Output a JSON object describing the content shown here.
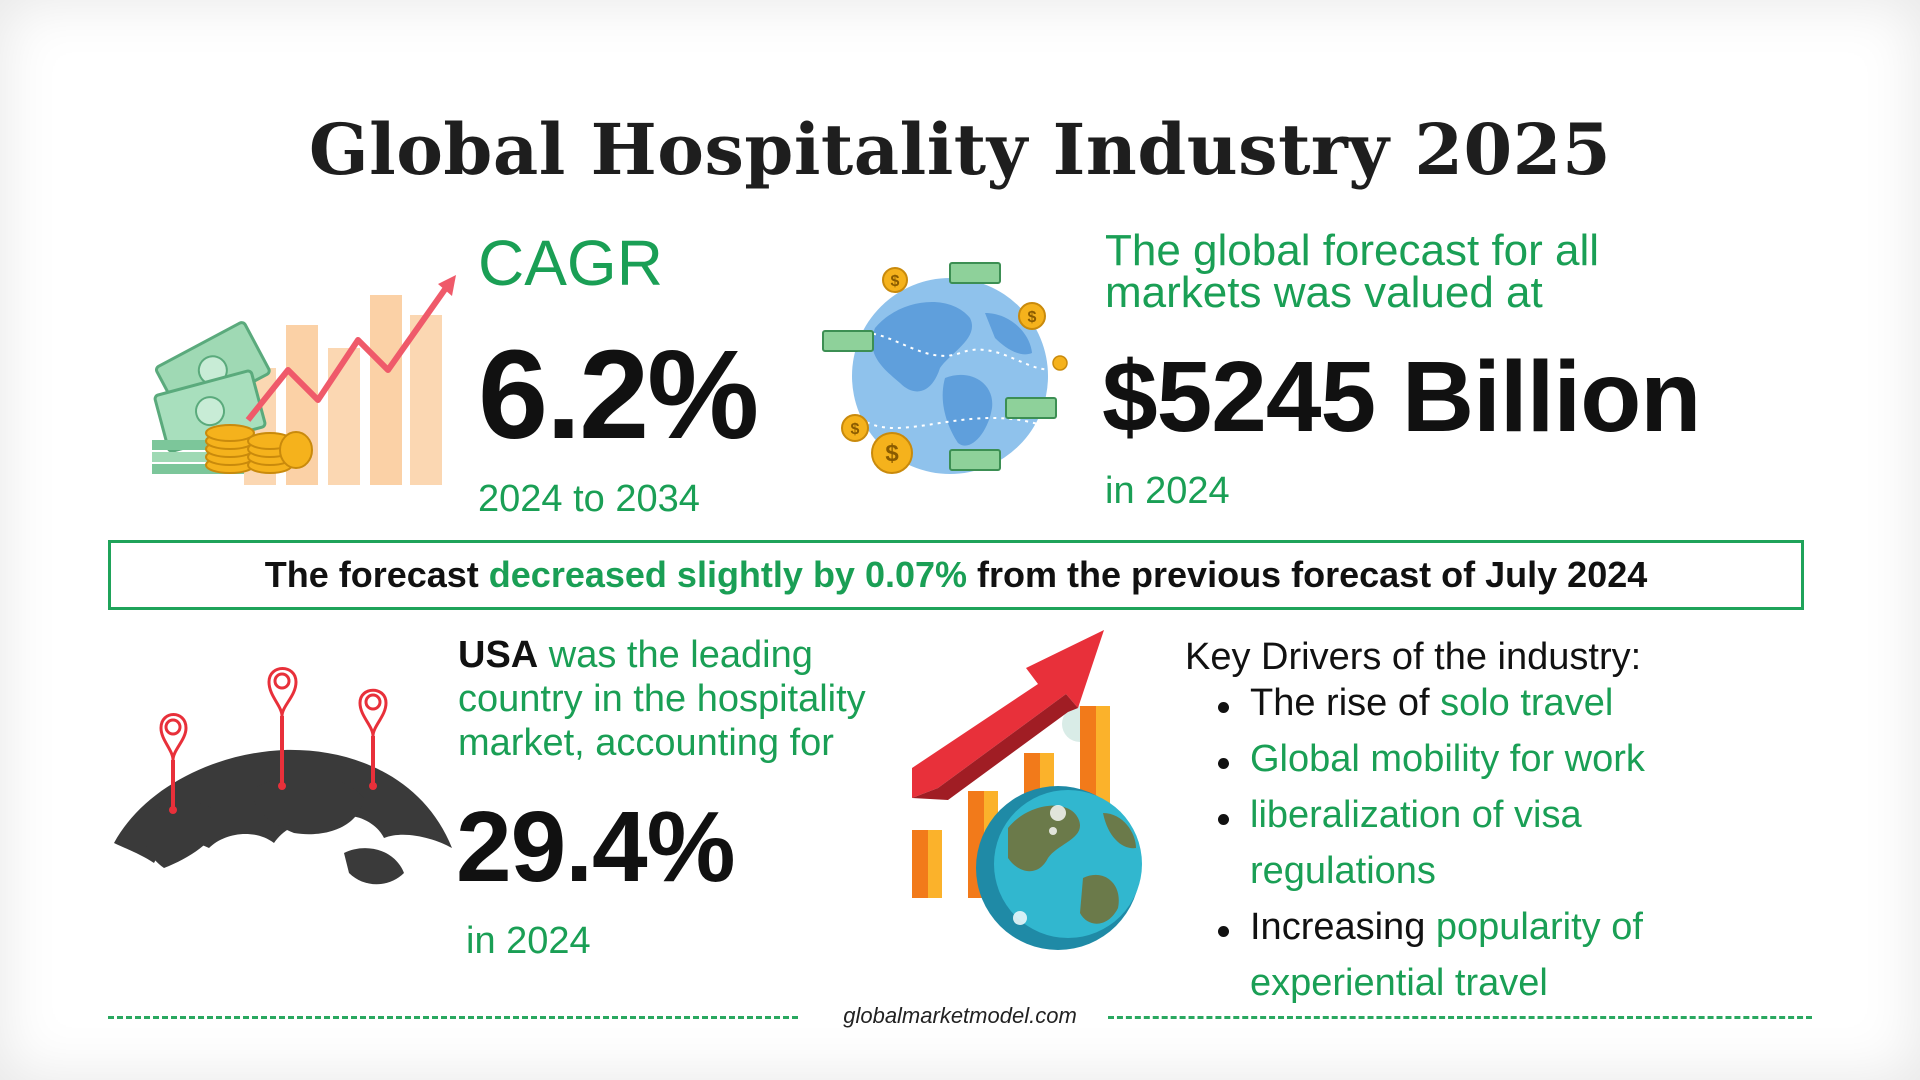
{
  "title": "Global Hospitality Industry 2025",
  "cagr": {
    "label": "CAGR",
    "value": "6.2%",
    "period": "2024 to 2034"
  },
  "forecast": {
    "line1": "The global forecast for all",
    "line2": "markets was valued at",
    "value": "$5245 Billion",
    "year": "in 2024"
  },
  "banner": {
    "part1": "The forecast ",
    "highlight": "decreased slightly by 0.07%",
    "part2": " from the previous forecast of July 2024"
  },
  "usa": {
    "country": "USA",
    "line1_rest": " was the leading",
    "line2": "country in the hospitality",
    "line3": "market, accounting for",
    "value": "29.4%",
    "year": "in 2024"
  },
  "drivers": {
    "title": "Key Drivers of the industry:",
    "item1_plain": "The rise of ",
    "item1_green": "solo travel",
    "item2_green": "Global mobility for work",
    "item3_green_l1": "liberalization of visa",
    "item3_green_l2": "regulations",
    "item4_plain": "Increasing ",
    "item4_green_l1": "popularity of",
    "item4_green_l2": "experiential travel"
  },
  "footer": {
    "text": "globalmarketmodel.com"
  },
  "colors": {
    "accent_green": "#1a9f55",
    "dark_text": "#111111",
    "dollar_gold": "#f5b21c",
    "growth_red": "#e8303a"
  },
  "icons": [
    "money-growth-chart-icon",
    "globe-with-money-icon",
    "world-map-pins-icon",
    "growth-chart-globe-icon"
  ]
}
